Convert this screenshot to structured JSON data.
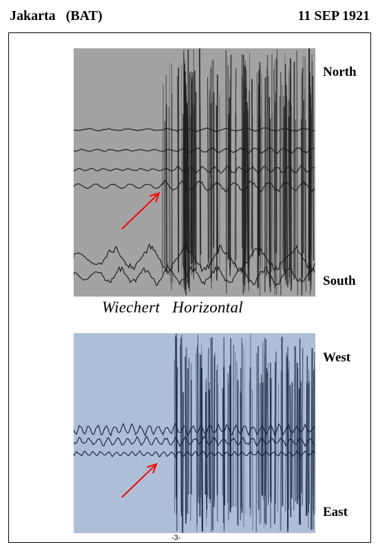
{
  "header": {
    "station": "Jakarta   (BAT)",
    "date": "11 SEP 1921"
  },
  "records": [
    {
      "instrument": "Wiechert   Horizontal",
      "top_label": "North",
      "bottom_label": "South",
      "image": "seismogram-north-south",
      "tone": "#a3a3a3"
    },
    {
      "top_label": "West",
      "bottom_label": "East",
      "image": "seismogram-west-east",
      "tone": "#adbfd6"
    }
  ],
  "annotation": {
    "arrow_color": "#ff0000",
    "marks": "P-wave arrival"
  },
  "footer": {
    "page": "-3-"
  }
}
